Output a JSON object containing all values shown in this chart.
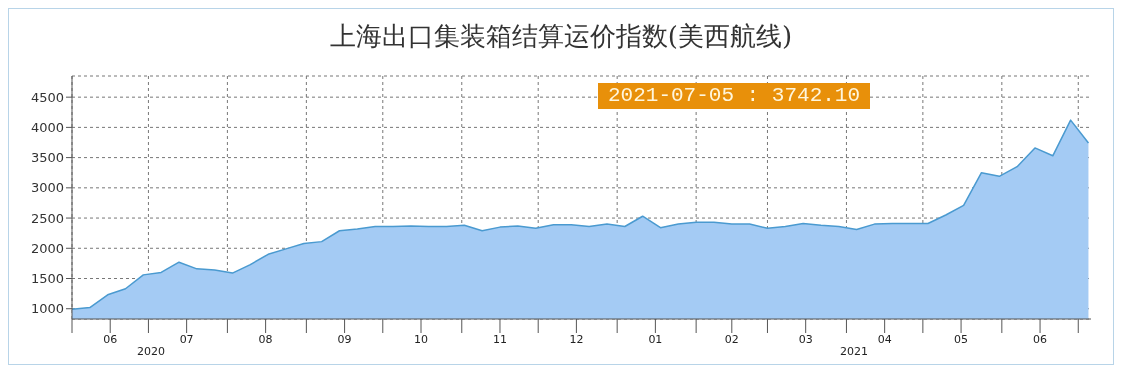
{
  "chart_data": {
    "type": "area",
    "title": "上海出口集装箱结算运价指数(美西航线)",
    "annotations": [
      "2021-07-05 : 3742.10",
      "2020",
      "2021"
    ],
    "x": [
      "2020-06-01",
      "2020-06-08",
      "2020-06-15",
      "2020-06-22",
      "2020-06-29",
      "2020-07-06",
      "2020-07-13",
      "2020-07-20",
      "2020-07-27",
      "2020-08-03",
      "2020-08-10",
      "2020-08-17",
      "2020-08-24",
      "2020-08-31",
      "2020-09-07",
      "2020-09-14",
      "2020-09-21",
      "2020-09-28",
      "2020-10-05",
      "2020-10-12",
      "2020-10-19",
      "2020-10-26",
      "2020-11-02",
      "2020-11-09",
      "2020-11-16",
      "2020-11-23",
      "2020-11-30",
      "2020-12-07",
      "2020-12-14",
      "2020-12-21",
      "2020-12-28",
      "2021-01-04",
      "2021-01-11",
      "2021-01-18",
      "2021-01-25",
      "2021-02-01",
      "2021-02-08",
      "2021-02-15",
      "2021-02-22",
      "2021-03-01",
      "2021-03-08",
      "2021-03-15",
      "2021-03-22",
      "2021-03-29",
      "2021-04-05",
      "2021-04-12",
      "2021-04-19",
      "2021-04-26",
      "2021-05-03",
      "2021-05-10",
      "2021-05-17",
      "2021-05-24",
      "2021-05-31",
      "2021-06-07",
      "2021-06-14",
      "2021-06-21",
      "2021-06-28",
      "2021-07-05"
    ],
    "series": [
      {
        "color": "#4a9ad0",
        "values": [
          990,
          1020,
          1230,
          1330,
          1560,
          1600,
          1770,
          1660,
          1640,
          1590,
          1730,
          1900,
          1990,
          2080,
          2110,
          2290,
          2320,
          2360,
          2360,
          2370,
          2360,
          2360,
          2380,
          2290,
          2350,
          2370,
          2330,
          2390,
          2390,
          2360,
          2400,
          2360,
          2530,
          2340,
          2400,
          2430,
          2430,
          2400,
          2400,
          2330,
          2360,
          2410,
          2380,
          2360,
          2310,
          2400,
          2410,
          2410,
          2410,
          2550,
          2710,
          3250,
          3190,
          3350,
          3660,
          3530,
          4120,
          3742.1
        ]
      }
    ],
    "xlim": [
      "2020-06-01",
      "2021-07-06"
    ],
    "xticks": [
      {
        "value": "2020-06-01",
        "label": null
      },
      {
        "value": "2020-06-16",
        "label": "06"
      },
      {
        "value": "2020-07-01",
        "label": null
      },
      {
        "value": "2020-07-16",
        "label": "07"
      },
      {
        "value": "2020-08-01",
        "label": null
      },
      {
        "value": "2020-08-16",
        "label": "08"
      },
      {
        "value": "2020-09-01",
        "label": null
      },
      {
        "value": "2020-09-16",
        "label": "09"
      },
      {
        "value": "2020-10-01",
        "label": null
      },
      {
        "value": "2020-10-16",
        "label": "10"
      },
      {
        "value": "2020-11-01",
        "label": null
      },
      {
        "value": "2020-11-16",
        "label": "11"
      },
      {
        "value": "2020-12-01",
        "label": null
      },
      {
        "value": "2020-12-16",
        "label": "12"
      },
      {
        "value": "2021-01-01",
        "label": null
      },
      {
        "value": "2021-01-16",
        "label": "01"
      },
      {
        "value": "2021-02-01",
        "label": null
      },
      {
        "value": "2021-02-15",
        "label": "02"
      },
      {
        "value": "2021-03-01",
        "label": null
      },
      {
        "value": "2021-03-16",
        "label": "03"
      },
      {
        "value": "2021-04-01",
        "label": null
      },
      {
        "value": "2021-04-16",
        "label": "04"
      },
      {
        "value": "2021-05-01",
        "label": null
      },
      {
        "value": "2021-05-16",
        "label": "05"
      },
      {
        "value": "2021-06-01",
        "label": null
      },
      {
        "value": "2021-06-16",
        "label": "06"
      },
      {
        "value": "2021-07-01",
        "label": null
      }
    ],
    "ylim": [
      830,
      4850
    ],
    "yticks": [
      1000,
      1500,
      2000,
      2500,
      3000,
      3500,
      4000,
      4500
    ],
    "grid": true
  }
}
